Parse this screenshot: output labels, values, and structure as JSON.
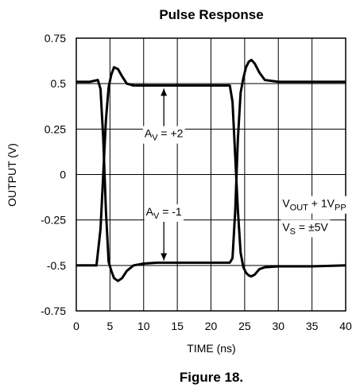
{
  "chart_data": {
    "type": "line",
    "title": "Pulse Response",
    "caption": "Figure 18.",
    "xlabel": "TIME (ns)",
    "ylabel": "OUTPUT (V)",
    "xlim": [
      0,
      40
    ],
    "ylim": [
      -0.75,
      0.75
    ],
    "x_ticks": [
      0,
      5,
      10,
      15,
      20,
      25,
      30,
      35,
      40
    ],
    "x_tick_labels": [
      "0",
      "5",
      "10",
      "15",
      "20",
      "25",
      "30",
      "35",
      "40"
    ],
    "y_ticks": [
      0.75,
      0.5,
      0.25,
      0,
      -0.25,
      -0.5,
      -0.75
    ],
    "y_tick_labels": [
      "0.75",
      "0.5",
      "0.25",
      "0",
      "-0.25",
      "-0.5",
      "-0.75"
    ],
    "grid": true,
    "series": [
      {
        "x": [
          0,
          2,
          3.2,
          3.6,
          4.0,
          4.4,
          4.8,
          5.2,
          5.6,
          6.2,
          6.8,
          7.5,
          8.5,
          10,
          12,
          15,
          20,
          22.8,
          23.2,
          23.6,
          24.0,
          24.4,
          24.8,
          25.2,
          25.6,
          26.0,
          26.5,
          27.2,
          28,
          30,
          35,
          40
        ],
        "y": [
          0.51,
          0.51,
          0.52,
          0.47,
          0.2,
          -0.2,
          -0.48,
          -0.53,
          -0.57,
          -0.585,
          -0.57,
          -0.53,
          -0.5,
          -0.49,
          -0.485,
          -0.485,
          -0.485,
          -0.485,
          -0.46,
          -0.2,
          0.2,
          0.45,
          0.53,
          0.59,
          0.62,
          0.63,
          0.61,
          0.56,
          0.52,
          0.51,
          0.51,
          0.51
        ]
      },
      {
        "x": [
          0,
          2,
          3.0,
          3.6,
          4.0,
          4.4,
          4.8,
          5.2,
          5.6,
          6.2,
          6.8,
          7.5,
          8.5,
          10,
          12,
          15,
          20,
          22.8,
          23.2,
          23.6,
          24.0,
          24.4,
          24.8,
          25.2,
          25.6,
          26.0,
          26.5,
          27.2,
          28,
          30,
          35,
          40
        ],
        "y": [
          -0.5,
          -0.5,
          -0.5,
          -0.3,
          0.0,
          0.3,
          0.48,
          0.55,
          0.59,
          0.58,
          0.54,
          0.5,
          0.49,
          0.49,
          0.49,
          0.49,
          0.49,
          0.49,
          0.4,
          0.1,
          -0.2,
          -0.43,
          -0.51,
          -0.54,
          -0.555,
          -0.56,
          -0.55,
          -0.52,
          -0.51,
          -0.505,
          -0.505,
          -0.5
        ]
      }
    ],
    "annotations": [
      {
        "main": "A",
        "sub": "V",
        "rest": " = +2",
        "x": 13,
        "y": 0.205,
        "arrow_to": [
          13,
          0.49
        ]
      },
      {
        "main": "A",
        "sub": "V",
        "rest": " = -1",
        "x": 13,
        "y": -0.225,
        "arrow_to": [
          13,
          -0.49
        ]
      },
      {
        "main": "V",
        "sub": "OUT",
        "rest": " + 1V",
        "sub2": "PP",
        "x": 30.6,
        "y": -0.18
      },
      {
        "main": "V",
        "sub": "S",
        "rest": " = ±5V",
        "x": 30.6,
        "y": -0.31
      }
    ]
  }
}
